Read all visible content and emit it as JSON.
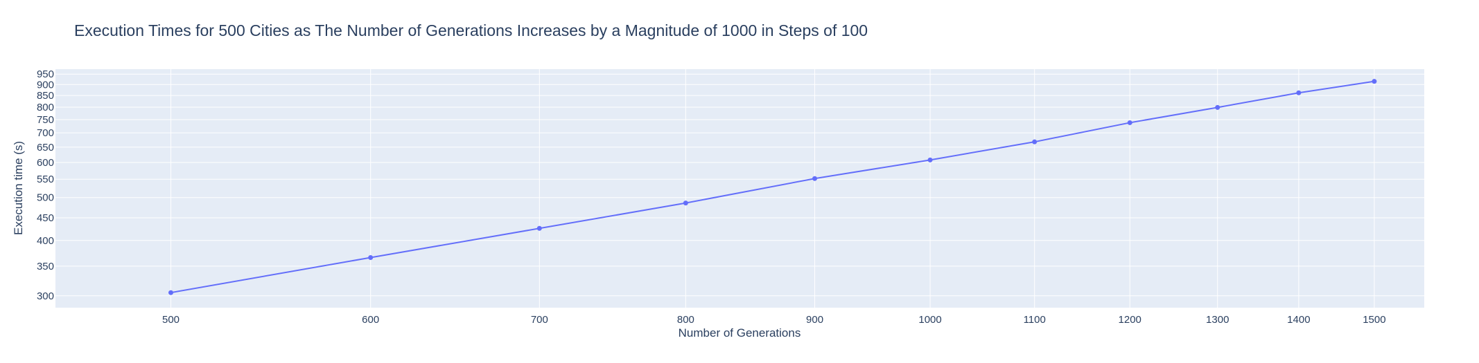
{
  "chart_data": {
    "type": "line",
    "title": "Execution Times for 500 Cities as The Number of Generations Increases by a Magnitude of 1000 in Steps of 100",
    "xlabel": "Number of Generations",
    "ylabel": "Execution time (s)",
    "x_scale": "log",
    "y_scale": "log",
    "xlim": [
      450,
      1570
    ],
    "ylim": [
      282,
      975
    ],
    "x_ticks": [
      500,
      600,
      700,
      800,
      900,
      1000,
      1100,
      1200,
      1300,
      1400,
      1500
    ],
    "y_ticks": [
      300,
      350,
      400,
      450,
      500,
      550,
      600,
      650,
      700,
      750,
      800,
      850,
      900,
      950
    ],
    "grid": true,
    "legend": "none",
    "colors": {
      "plot_bg": "#e5ecf6",
      "grid": "#ffffff",
      "line": "#636efa",
      "text": "#2a3f5f"
    },
    "series": [
      {
        "x": [
          500,
          600,
          700,
          800,
          900,
          1000,
          1100,
          1200,
          1300,
          1400,
          1500
        ],
        "y": [
          305,
          366,
          426,
          486,
          552,
          608,
          668,
          738,
          799,
          862,
          915
        ],
        "mode": "lines+markers"
      }
    ]
  }
}
